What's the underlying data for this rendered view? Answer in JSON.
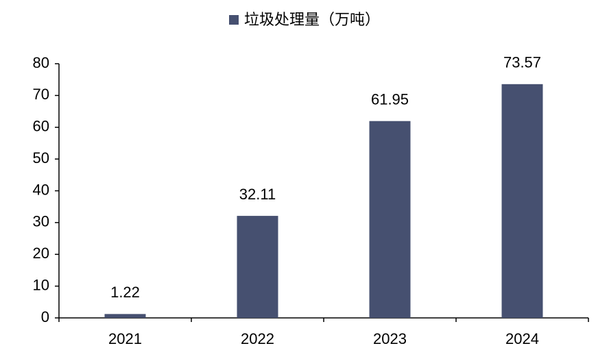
{
  "chart_data": {
    "type": "bar",
    "categories": [
      "2021",
      "2022",
      "2023",
      "2024"
    ],
    "series": [
      {
        "name": "垃圾处理量（万吨）",
        "color": "#465070",
        "values": [
          1.22,
          32.11,
          61.95,
          73.57
        ]
      }
    ],
    "ylim": [
      0,
      80
    ],
    "yticks": [
      0,
      10,
      20,
      30,
      40,
      50,
      60,
      70,
      80
    ],
    "grid": false,
    "legend": "top"
  }
}
